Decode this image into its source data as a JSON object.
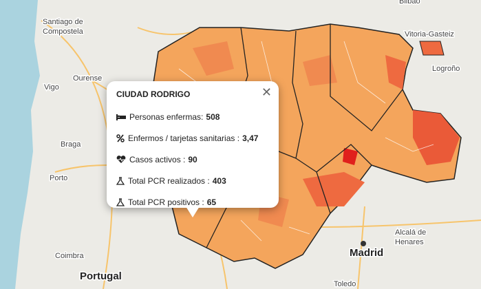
{
  "map": {
    "labels": [
      "Bilbao",
      "Santiago de",
      "Compostela",
      "Ourense",
      "Vigo",
      "Braga",
      "Porto",
      "Coimbra",
      "Portugal",
      "Vitoria-Gasteiz",
      "Logroño",
      "Alcalá de",
      "Henares",
      "Madrid",
      "Toledo"
    ]
  },
  "popup": {
    "title": "CIUDAD RODRIGO",
    "rows": [
      {
        "label": "Personas enfermas:",
        "value": 508
      },
      {
        "label": "Enfermos / tarjetas sanitarias :",
        "value": "3,47"
      },
      {
        "label": "Casos activos :",
        "value": 90
      },
      {
        "label": "Total PCR realizados :",
        "value": 403
      },
      {
        "label": "Total PCR positivos :",
        "value": 65
      }
    ]
  }
}
